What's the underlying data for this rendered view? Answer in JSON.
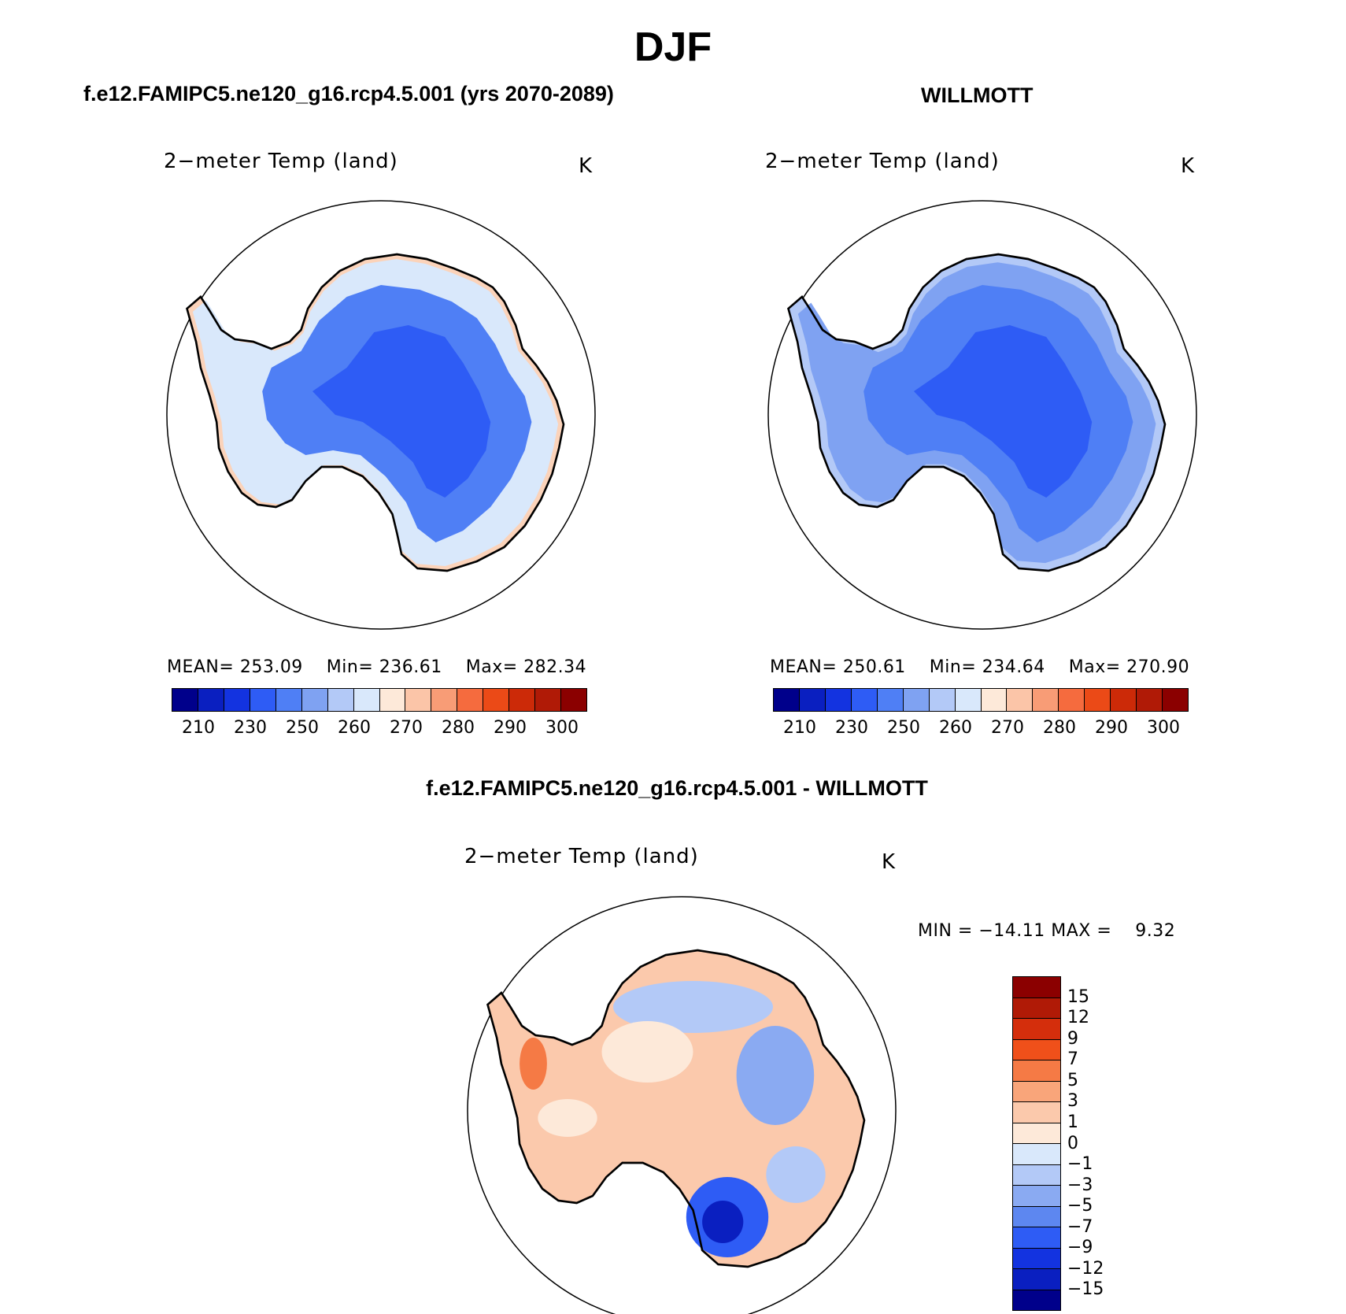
{
  "title": "DJF",
  "panels": {
    "top_left": {
      "title": "f.e12.FAMIPC5.ne120_g16.rcp4.5.001 (yrs 2070-2089)",
      "subtitle": "2−meter Temp (land)",
      "unit": "K",
      "mean_label": "MEAN=",
      "mean": "253.09",
      "min_label": "Min=",
      "min": "236.61",
      "max_label": "Max=",
      "max": "282.34"
    },
    "top_right": {
      "title": "WILLMOTT",
      "subtitle": "2−meter Temp (land)",
      "unit": "K",
      "mean_label": "MEAN=",
      "mean": "250.61",
      "min_label": "Min=",
      "min": "234.64",
      "max_label": "Max=",
      "max": "270.90"
    },
    "bottom": {
      "title": "f.e12.FAMIPC5.ne120_g16.rcp4.5.001 - WILLMOTT",
      "subtitle": "2−meter Temp (land)",
      "unit": "K",
      "minmax_text": "MIN = −14.11 MAX =    9.32"
    }
  },
  "colorbar_abs": {
    "tick_labels": [
      "210",
      "230",
      "250",
      "260",
      "270",
      "280",
      "290",
      "300"
    ],
    "colors": [
      "#00008b",
      "#0a1fc0",
      "#1333e0",
      "#2e5cf5",
      "#4f7ff5",
      "#7fa2f2",
      "#b3c9f7",
      "#d9e8fb",
      "#fde9d9",
      "#fbc5a8",
      "#f89c76",
      "#f56b3e",
      "#eb4a17",
      "#cc2a08",
      "#b01a06",
      "#8b0000"
    ]
  },
  "colorbar_diff": {
    "tick_labels": [
      "15",
      "12",
      "9",
      "7",
      "5",
      "3",
      "1",
      "0",
      "−1",
      "−3",
      "−5",
      "−7",
      "−9",
      "−12",
      "−15"
    ],
    "colors": [
      "#8b0000",
      "#b01a06",
      "#d42e0c",
      "#f0501a",
      "#f57a45",
      "#f9a57a",
      "#fbc9ac",
      "#fde9d9",
      "#d9e8fb",
      "#b3c9f7",
      "#8aaaf2",
      "#5d87f0",
      "#2e5cf5",
      "#1333e0",
      "#0a1fc0",
      "#00008b"
    ]
  },
  "chart_data": [
    {
      "type": "heatmap",
      "title": "f.e12.FAMIPC5.ne120_g16.rcp4.5.001 (yrs 2070-2089)",
      "variable": "2-meter Temp (land)",
      "unit": "K",
      "projection": "south polar stereographic",
      "stats": {
        "mean": 253.09,
        "min": 236.61,
        "max": 282.34
      },
      "colorbar_ticks": [
        210,
        230,
        250,
        260,
        270,
        280,
        290,
        300
      ]
    },
    {
      "type": "heatmap",
      "title": "WILLMOTT",
      "variable": "2-meter Temp (land)",
      "unit": "K",
      "projection": "south polar stereographic",
      "stats": {
        "mean": 250.61,
        "min": 234.64,
        "max": 270.9
      },
      "colorbar_ticks": [
        210,
        230,
        250,
        260,
        270,
        280,
        290,
        300
      ]
    },
    {
      "type": "heatmap",
      "title": "f.e12.FAMIPC5.ne120_g16.rcp4.5.001 - WILLMOTT",
      "variable": "2-meter Temp (land)",
      "unit": "K",
      "projection": "south polar stereographic",
      "stats": {
        "min": -14.11,
        "max": 9.32
      },
      "colorbar_ticks": [
        15,
        12,
        9,
        7,
        5,
        3,
        1,
        0,
        -1,
        -3,
        -5,
        -7,
        -9,
        -12,
        -15
      ]
    }
  ]
}
